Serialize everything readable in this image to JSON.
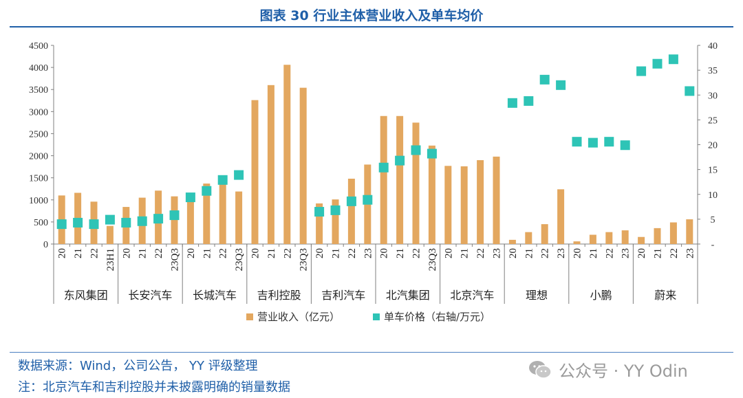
{
  "page": {
    "title": "图表 30 行业主体营业收入及单车均价",
    "source": "数据来源：Wind，公司公告， YY 评级整理",
    "note": "注：北京汽车和吉利控股并未披露明确的销量数据",
    "watermark": "公众号 · YY Odin",
    "colors": {
      "title": "#1f5fa8",
      "revenue": "#e3a75f",
      "price": "#2ec4b6"
    }
  },
  "chart_data": {
    "type": "bar",
    "left_ylim": [
      0,
      4500
    ],
    "left_ticks": [
      "0",
      "500",
      "1000",
      "1500",
      "2000",
      "2500",
      "3000",
      "3500",
      "4000",
      "4500"
    ],
    "right_ylim": [
      0,
      40
    ],
    "right_ticks": [
      "-",
      "5",
      "10",
      "15",
      "20",
      "25",
      "30",
      "35",
      "40"
    ],
    "grid": false,
    "legend_position": "bottom",
    "groups": [
      {
        "name": "东风集团",
        "categories": [
          "20",
          "21",
          "22",
          "23H1"
        ],
        "revenue": [
          1100,
          1160,
          960,
          410
        ],
        "price": [
          4.0,
          4.3,
          4.0,
          4.9
        ]
      },
      {
        "name": "长安汽车",
        "categories": [
          "20",
          "21",
          "22",
          "23Q3"
        ],
        "revenue": [
          840,
          1050,
          1210,
          1080
        ],
        "price": [
          4.3,
          4.6,
          5.1,
          5.8
        ]
      },
      {
        "name": "长城汽车",
        "categories": [
          "20",
          "21",
          "22",
          "23Q3"
        ],
        "revenue": [
          1030,
          1370,
          1380,
          1190
        ],
        "price": [
          9.4,
          10.7,
          12.9,
          13.9
        ]
      },
      {
        "name": "吉利控股",
        "categories": [
          "20",
          "21",
          "22",
          "23Q3"
        ],
        "revenue": [
          3260,
          3600,
          4060,
          3540
        ],
        "price": [
          null,
          null,
          null,
          null
        ]
      },
      {
        "name": "吉利汽车",
        "categories": [
          "20",
          "21",
          "22",
          "23"
        ],
        "revenue": [
          920,
          1010,
          1480,
          1800
        ],
        "price": [
          6.5,
          6.8,
          8.6,
          8.9
        ]
      },
      {
        "name": "北汽集团",
        "categories": [
          "20",
          "21",
          "22",
          "23Q3"
        ],
        "revenue": [
          2900,
          2900,
          2750,
          2230
        ],
        "price": [
          15.4,
          16.8,
          18.9,
          18.2
        ]
      },
      {
        "name": "北京汽车",
        "categories": [
          "20",
          "21",
          "22",
          "23"
        ],
        "revenue": [
          1770,
          1760,
          1900,
          1980
        ],
        "price": [
          null,
          null,
          null,
          null
        ]
      },
      {
        "name": "理想",
        "categories": [
          "20",
          "21",
          "22",
          "23"
        ],
        "revenue": [
          95,
          270,
          450,
          1240
        ],
        "price": [
          28.4,
          28.8,
          33.1,
          32.0
        ]
      },
      {
        "name": "小鹏",
        "categories": [
          "20",
          "21",
          "22",
          "23"
        ],
        "revenue": [
          60,
          210,
          270,
          310
        ],
        "price": [
          20.6,
          20.4,
          20.6,
          19.9
        ]
      },
      {
        "name": "蔚来",
        "categories": [
          "20",
          "21",
          "22",
          "23"
        ],
        "revenue": [
          160,
          360,
          490,
          560
        ],
        "price": [
          34.8,
          36.3,
          37.2,
          30.8
        ]
      }
    ],
    "series": [
      {
        "name": "营业收入（亿元）",
        "type": "bar",
        "axis": "left"
      },
      {
        "name": "单车价格（右轴/万元）",
        "type": "scatter",
        "axis": "right"
      }
    ]
  }
}
